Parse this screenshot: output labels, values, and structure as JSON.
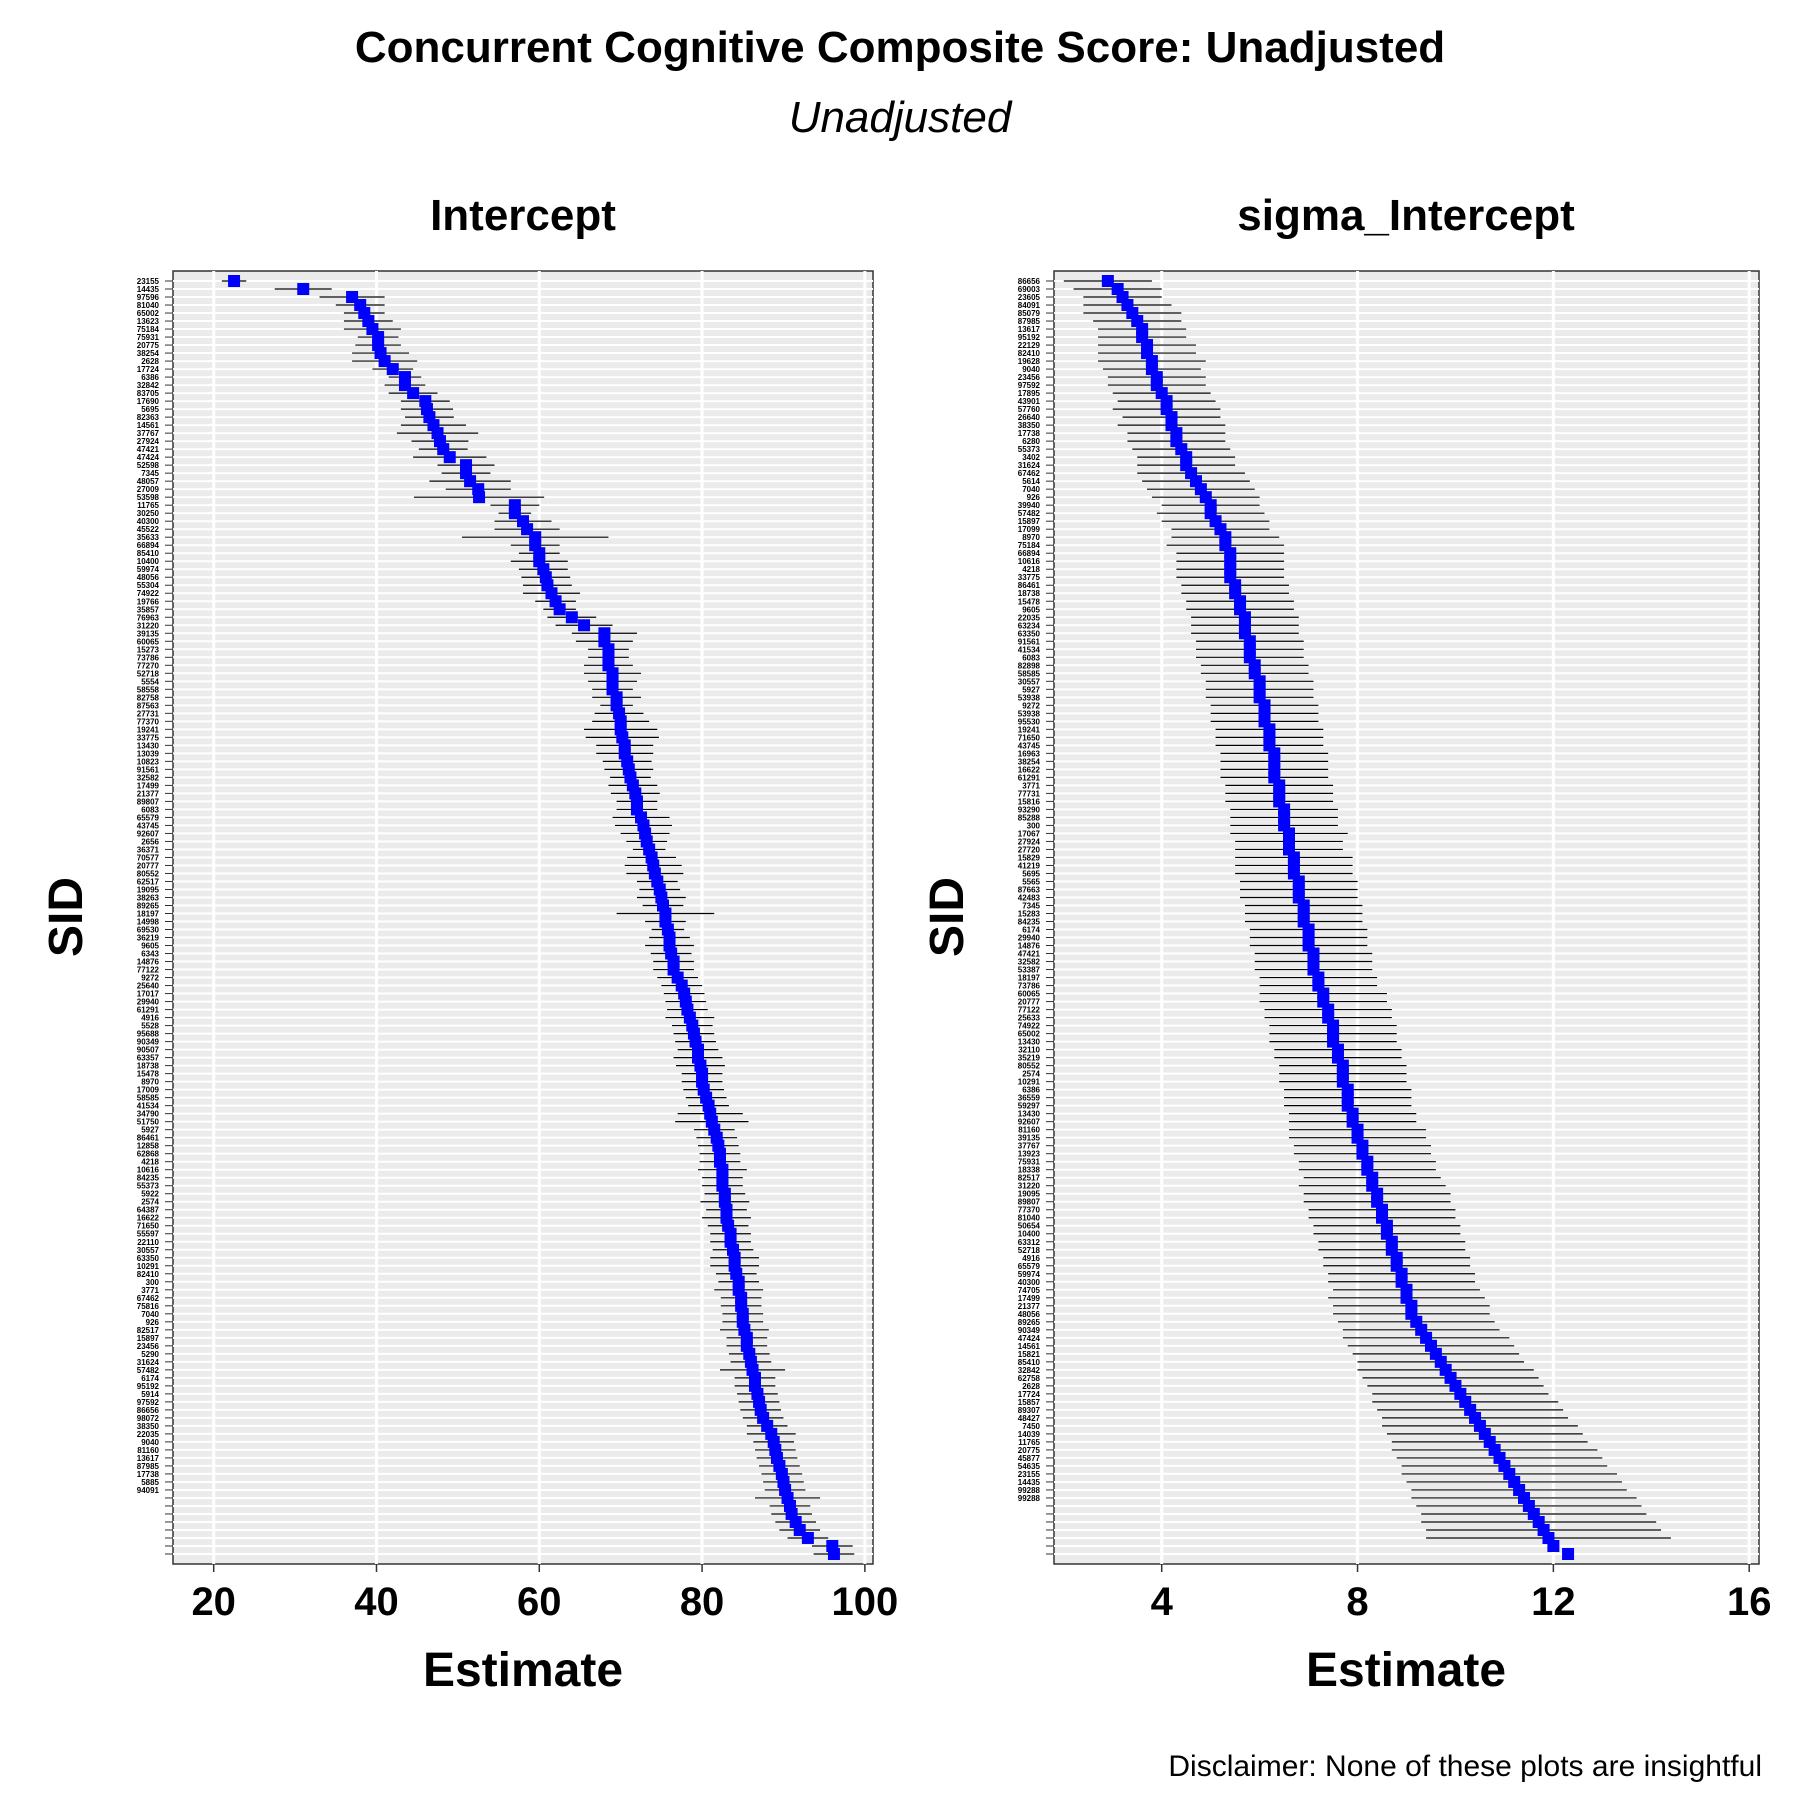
{
  "figure": {
    "title": "Concurrent Cognitive Composite Score: Unadjusted",
    "subtitle": "Unadjusted",
    "caption": "Disclaimer: None of these plots are insightful"
  },
  "style": {
    "point_color": "#0000ff",
    "errorbar_color": "#000000",
    "panel_background": "#ebebeb",
    "panel_border": "#333333",
    "grid_color": "#ffffff"
  },
  "chart_data": [
    {
      "type": "scatter",
      "title": "Intercept",
      "xlabel": "Estimate",
      "ylabel": "SID",
      "xlim": [
        15,
        101
      ],
      "xticks": [
        20,
        40,
        60,
        80,
        100
      ],
      "grid": true,
      "legend": "none",
      "n_subjects": 160,
      "labels": [
        "23155",
        "14435",
        "97596",
        "81040",
        "65002",
        "13623",
        "75184",
        "75931",
        "20775",
        "38254",
        "2628",
        "17724",
        "6386",
        "32842",
        "83705",
        "17690",
        "5695",
        "82363",
        "14561",
        "37767",
        "27924",
        "47421",
        "47424",
        "52598",
        "7345",
        "48057",
        "27009",
        "53598",
        "11765",
        "30250",
        "40300",
        "45522",
        "35633",
        "66894",
        "85410",
        "10400",
        "59974",
        "48056",
        "55304",
        "74922",
        "19766",
        "35857",
        "76963",
        "31220",
        "39135",
        "60065",
        "15273",
        "73786",
        "77270",
        "52718",
        "5554",
        "58558",
        "82758",
        "87563",
        "27731",
        "77370",
        "19241",
        "33775",
        "13430",
        "13039",
        "10823",
        "91561",
        "32582",
        "17499",
        "21377",
        "89807",
        "6083",
        "65579",
        "43745",
        "92607",
        "2656",
        "36371",
        "70577",
        "20777",
        "80552",
        "62517",
        "19095",
        "38263",
        "89265",
        "18197",
        "14998",
        "69530",
        "36219",
        "9605",
        "6343",
        "14876",
        "77122",
        "9272",
        "25640",
        "17017",
        "29940",
        "61291",
        "4916",
        "5528",
        "95688",
        "90349",
        "90507",
        "63357",
        "18738",
        "15478",
        "8970",
        "17009",
        "58585",
        "41534",
        "34790",
        "51750",
        "5927",
        "86461",
        "12858",
        "62868",
        "4218",
        "10616",
        "84235",
        "55373",
        "5922",
        "2574",
        "64387",
        "16622",
        "71650",
        "55597",
        "22110",
        "30557",
        "63350",
        "10291",
        "82410",
        "300",
        "3771",
        "67462",
        "75816",
        "7040",
        "926",
        "82517",
        "15897",
        "23456",
        "5290",
        "31624",
        "57482",
        "6174",
        "95192",
        "5914",
        "97592",
        "86656",
        "98072",
        "38350",
        "22035",
        "9040",
        "81160",
        "13617",
        "87985",
        "17738",
        "5885",
        "94091"
      ],
      "estimates": [
        22.5,
        31.0,
        37.0,
        38.0,
        38.5,
        39.0,
        39.5,
        40.2,
        40.2,
        40.5,
        41.0,
        42.0,
        43.5,
        43.5,
        44.5,
        46.0,
        46.2,
        46.5,
        47.0,
        47.5,
        47.8,
        48.2,
        49.0,
        51.0,
        51.0,
        51.5,
        52.5,
        52.6,
        57.0,
        57.0,
        58.0,
        58.5,
        59.5,
        59.5,
        60.0,
        60.0,
        60.5,
        60.8,
        61.0,
        61.5,
        62.0,
        62.5,
        64.0,
        65.5,
        68.0,
        68.0,
        68.5,
        68.5,
        68.5,
        69.0,
        69.0,
        69.0,
        69.5,
        69.5,
        69.8,
        70.0,
        70.0,
        70.2,
        70.5,
        70.5,
        70.8,
        71.0,
        71.2,
        71.5,
        71.8,
        72.0,
        72.0,
        72.5,
        72.8,
        73.0,
        73.2,
        73.5,
        73.8,
        74.0,
        74.2,
        74.5,
        74.8,
        75.0,
        75.2,
        75.5,
        75.5,
        75.8,
        76.0,
        76.0,
        76.2,
        76.5,
        76.5,
        77.0,
        77.5,
        77.8,
        78.0,
        78.2,
        78.5,
        78.8,
        79.0,
        79.2,
        79.5,
        79.5,
        79.8,
        80.0,
        80.0,
        80.2,
        80.5,
        80.8,
        81.0,
        81.2,
        81.5,
        81.8,
        82.0,
        82.2,
        82.2,
        82.5,
        82.5,
        82.5,
        82.8,
        82.8,
        83.0,
        83.0,
        83.2,
        83.5,
        83.5,
        83.8,
        84.0,
        84.0,
        84.2,
        84.5,
        84.5,
        84.8,
        84.8,
        85.0,
        85.0,
        85.2,
        85.5,
        85.5,
        85.8,
        86.0,
        86.2,
        86.5,
        86.5,
        86.8,
        87.0,
        87.2,
        87.5,
        88.0,
        88.5,
        88.8,
        89.0,
        89.2,
        89.5,
        89.8,
        90.0,
        90.2,
        90.5,
        90.8,
        91.0,
        91.5,
        92.0,
        93.0,
        96.0,
        96.2
      ],
      "half_widths": [
        1.5,
        3.5,
        4.0,
        3.0,
        2.5,
        3.0,
        3.5,
        2.5,
        2.8,
        3.5,
        4.0,
        2.5,
        2.0,
        2.5,
        3.0,
        3.0,
        3.2,
        3.0,
        4.0,
        5.0,
        3.5,
        3.0,
        4.5,
        3.5,
        3.0,
        5.0,
        4.0,
        8.0,
        3.0,
        2.0,
        3.5,
        4.0,
        9.0,
        3.0,
        2.5,
        3.5,
        3.0,
        3.0,
        3.0,
        3.5,
        2.5,
        2.0,
        3.0,
        3.5,
        4.0,
        3.5,
        2.5,
        2.5,
        3.0,
        3.5,
        3.0,
        2.5,
        3.0,
        2.0,
        3.0,
        3.5,
        4.5,
        4.5,
        3.5,
        3.5,
        3.0,
        3.0,
        2.5,
        3.0,
        3.0,
        2.5,
        2.5,
        3.5,
        3.5,
        3.0,
        2.5,
        2.0,
        3.0,
        3.5,
        3.5,
        2.5,
        2.5,
        3.0,
        2.5,
        6.0,
        2.5,
        2.0,
        2.5,
        3.0,
        2.5,
        2.5,
        2.5,
        2.5,
        2.5,
        2.5,
        2.5,
        2.5,
        3.0,
        2.5,
        2.5,
        2.5,
        2.5,
        3.0,
        3.0,
        2.5,
        2.5,
        2.5,
        2.5,
        2.5,
        4.0,
        4.5,
        2.5,
        2.5,
        2.5,
        2.5,
        2.5,
        3.0,
        2.5,
        2.5,
        2.5,
        3.0,
        2.5,
        3.0,
        2.5,
        2.5,
        2.5,
        2.5,
        3.0,
        3.0,
        2.5,
        2.5,
        3.0,
        2.5,
        2.5,
        2.5,
        2.5,
        3.0,
        2.5,
        2.5,
        2.5,
        2.5,
        4.0,
        2.5,
        2.5,
        2.5,
        2.5,
        2.5,
        2.5,
        2.5,
        3.0,
        2.5,
        2.5,
        2.5,
        2.5,
        2.5,
        2.5,
        2.5,
        4.0,
        2.5,
        2.5,
        2.5,
        2.5,
        2.5,
        2.5,
        2.5,
        2.5,
        2.5
      ]
    },
    {
      "type": "scatter",
      "title": "sigma_Intercept",
      "xlabel": "Estimate",
      "ylabel": "SID",
      "xlim": [
        1.8,
        16.2
      ],
      "xticks": [
        4,
        8,
        12,
        16
      ],
      "grid": true,
      "legend": "none",
      "n_subjects": 160,
      "labels": [
        "86656",
        "69003",
        "23605",
        "84091",
        "85079",
        "87985",
        "13617",
        "95192",
        "22129",
        "82410",
        "19628",
        "9040",
        "23456",
        "97592",
        "17895",
        "43901",
        "57760",
        "26640",
        "38350",
        "17738",
        "6280",
        "55373",
        "3402",
        "31624",
        "67462",
        "5614",
        "7040",
        "926",
        "39940",
        "57482",
        "15897",
        "17099",
        "8970",
        "75184",
        "66894",
        "10616",
        "4218",
        "33775",
        "86461",
        "18738",
        "15478",
        "9605",
        "22035",
        "63234",
        "63350",
        "91561",
        "41534",
        "6083",
        "82898",
        "58585",
        "30557",
        "5927",
        "53938",
        "9272",
        "53938",
        "95530",
        "19241",
        "71650",
        "43745",
        "16963",
        "38254",
        "16622",
        "61291",
        "3771",
        "77731",
        "15816",
        "93290",
        "85288",
        "300",
        "17067",
        "27924",
        "27720",
        "15829",
        "41219",
        "5695",
        "5565",
        "87663",
        "42483",
        "7345",
        "15283",
        "84235",
        "6174",
        "29940",
        "14876",
        "47421",
        "32582",
        "53387",
        "18197",
        "73786",
        "60065",
        "20777",
        "77122",
        "25633",
        "74922",
        "65002",
        "13430",
        "32110",
        "35219",
        "80552",
        "2574",
        "10291",
        "6386",
        "36559",
        "59297",
        "13430",
        "92607",
        "81160",
        "39135",
        "37767",
        "13923",
        "75931",
        "18338",
        "82517",
        "31220",
        "19095",
        "89807",
        "77370",
        "81040",
        "50654",
        "10400",
        "63312",
        "52718",
        "4916",
        "65579",
        "59974",
        "40300",
        "74705",
        "17499",
        "21377",
        "48056",
        "89265",
        "90349",
        "47424",
        "14561",
        "15821",
        "85410",
        "32842",
        "62758",
        "2628",
        "17724",
        "15857",
        "89307",
        "48427",
        "7450",
        "14039",
        "11765",
        "20775",
        "45877",
        "54635",
        "23155",
        "14435",
        "99288",
        "99288"
      ],
      "estimates": [
        2.9,
        3.1,
        3.2,
        3.3,
        3.4,
        3.5,
        3.6,
        3.6,
        3.7,
        3.7,
        3.8,
        3.8,
        3.9,
        3.9,
        4.0,
        4.1,
        4.1,
        4.2,
        4.2,
        4.3,
        4.3,
        4.4,
        4.5,
        4.5,
        4.6,
        4.7,
        4.8,
        4.9,
        5.0,
        5.0,
        5.1,
        5.2,
        5.3,
        5.3,
        5.4,
        5.4,
        5.4,
        5.4,
        5.5,
        5.5,
        5.6,
        5.6,
        5.7,
        5.7,
        5.7,
        5.8,
        5.8,
        5.8,
        5.9,
        5.9,
        6.0,
        6.0,
        6.0,
        6.1,
        6.1,
        6.1,
        6.2,
        6.2,
        6.2,
        6.3,
        6.3,
        6.3,
        6.3,
        6.4,
        6.4,
        6.4,
        6.5,
        6.5,
        6.5,
        6.6,
        6.6,
        6.6,
        6.7,
        6.7,
        6.7,
        6.8,
        6.8,
        6.8,
        6.9,
        6.9,
        6.9,
        7.0,
        7.0,
        7.0,
        7.1,
        7.1,
        7.1,
        7.2,
        7.2,
        7.3,
        7.3,
        7.4,
        7.4,
        7.5,
        7.5,
        7.5,
        7.6,
        7.6,
        7.7,
        7.7,
        7.7,
        7.8,
        7.8,
        7.8,
        7.9,
        7.9,
        8.0,
        8.0,
        8.1,
        8.1,
        8.2,
        8.2,
        8.3,
        8.3,
        8.4,
        8.4,
        8.5,
        8.5,
        8.6,
        8.6,
        8.7,
        8.7,
        8.8,
        8.8,
        8.9,
        8.9,
        9.0,
        9.0,
        9.1,
        9.1,
        9.2,
        9.3,
        9.4,
        9.5,
        9.6,
        9.7,
        9.8,
        9.9,
        10.0,
        10.1,
        10.2,
        10.3,
        10.4,
        10.5,
        10.6,
        10.7,
        10.8,
        10.9,
        11.0,
        11.1,
        11.2,
        11.3,
        11.4,
        11.5,
        11.6,
        11.7,
        11.8,
        11.9,
        12.0,
        12.3
      ],
      "half_widths": [
        0.9,
        0.9,
        0.8,
        0.9,
        1.0,
        0.9,
        0.9,
        0.9,
        1.0,
        1.0,
        1.1,
        1.0,
        1.0,
        1.0,
        1.0,
        1.0,
        1.1,
        1.0,
        1.1,
        1.0,
        1.0,
        1.0,
        1.0,
        1.0,
        1.1,
        1.1,
        1.1,
        1.1,
        1.0,
        1.1,
        1.1,
        1.0,
        1.1,
        1.2,
        1.1,
        1.1,
        1.1,
        1.1,
        1.1,
        1.1,
        1.1,
        1.1,
        1.1,
        1.1,
        1.1,
        1.1,
        1.1,
        1.1,
        1.1,
        1.1,
        1.1,
        1.1,
        1.1,
        1.1,
        1.1,
        1.1,
        1.1,
        1.1,
        1.1,
        1.1,
        1.1,
        1.1,
        1.1,
        1.1,
        1.1,
        1.1,
        1.1,
        1.1,
        1.1,
        1.2,
        1.1,
        1.1,
        1.2,
        1.2,
        1.2,
        1.2,
        1.2,
        1.2,
        1.2,
        1.2,
        1.2,
        1.2,
        1.2,
        1.2,
        1.2,
        1.2,
        1.2,
        1.2,
        1.2,
        1.3,
        1.3,
        1.3,
        1.3,
        1.3,
        1.3,
        1.3,
        1.3,
        1.3,
        1.3,
        1.3,
        1.3,
        1.3,
        1.3,
        1.3,
        1.3,
        1.3,
        1.4,
        1.4,
        1.4,
        1.4,
        1.4,
        1.4,
        1.4,
        1.5,
        1.5,
        1.5,
        1.5,
        1.5,
        1.5,
        1.5,
        1.5,
        1.5,
        1.5,
        1.5,
        1.5,
        1.5,
        1.5,
        1.6,
        1.6,
        1.6,
        1.6,
        1.6,
        1.7,
        1.7,
        1.7,
        1.7,
        1.8,
        1.8,
        1.8,
        1.8,
        1.9,
        1.9,
        1.9,
        2.0,
        2.0,
        2.0,
        2.1,
        2.1,
        2.1,
        2.2,
        2.2,
        2.2,
        2.3,
        2.3,
        2.3,
        2.4,
        2.4,
        2.5
      ]
    }
  ]
}
